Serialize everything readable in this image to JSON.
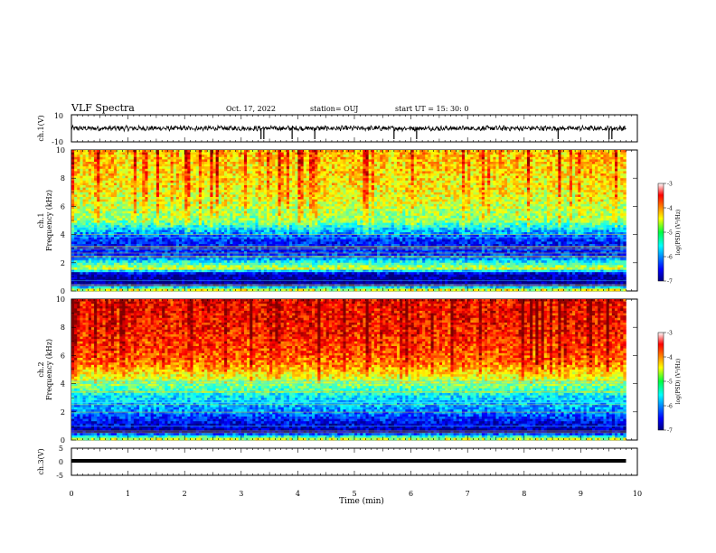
{
  "header": {
    "title": "VLF Spectra",
    "date": "Oct. 17, 2022",
    "station": "station= OUJ",
    "start": "start  UT =   15: 30: 0"
  },
  "chart_data": [
    {
      "type": "line",
      "name_label": "ch.1(V)",
      "xlim": [
        0,
        10
      ],
      "ylim": [
        -10,
        10
      ],
      "yticks": [
        "10",
        "-10"
      ],
      "baseline": 0,
      "x_end": 9.8,
      "spike_times": [
        3.35,
        3.4,
        3.9,
        4.3,
        5.7,
        6.1,
        8.6,
        9.5,
        9.55
      ]
    },
    {
      "type": "heatmap",
      "ylabel": "ch.1\nFrequency (kHz)",
      "xlim": [
        0,
        10
      ],
      "ylim": [
        0,
        10
      ],
      "yticks": [
        "0",
        "2",
        "4",
        "6",
        "8",
        "10"
      ],
      "x_end": 9.8,
      "band_profile": [
        {
          "f": 0.0,
          "v": -4.2
        },
        {
          "f": 0.5,
          "v": -7.0
        },
        {
          "f": 1.2,
          "v": -6.8
        },
        {
          "f": 1.6,
          "v": -4.6
        },
        {
          "f": 2.5,
          "v": -6.3
        },
        {
          "f": 3.5,
          "v": -6.4
        },
        {
          "f": 4.3,
          "v": -5.8
        },
        {
          "f": 5.0,
          "v": -5.0
        },
        {
          "f": 7.0,
          "v": -4.6
        },
        {
          "f": 10.0,
          "v": -4.4
        }
      ],
      "colorbar": {
        "min": -7,
        "max": -3,
        "ticks": [
          "-3",
          "-4",
          "-5",
          "-6",
          "-7"
        ],
        "label": "log(PSD) (V²/Hz)"
      }
    },
    {
      "type": "heatmap",
      "ylabel": "ch.2\nFrequency (kHz)",
      "xlim": [
        0,
        10
      ],
      "ylim": [
        0,
        10
      ],
      "yticks": [
        "0",
        "2",
        "4",
        "6",
        "8",
        "10"
      ],
      "x_end": 9.8,
      "band_profile": [
        {
          "f": 0.0,
          "v": -4.4
        },
        {
          "f": 0.6,
          "v": -6.9
        },
        {
          "f": 1.3,
          "v": -6.5
        },
        {
          "f": 2.0,
          "v": -6.0
        },
        {
          "f": 3.0,
          "v": -5.6
        },
        {
          "f": 4.2,
          "v": -4.8
        },
        {
          "f": 5.5,
          "v": -4.0
        },
        {
          "f": 7.5,
          "v": -3.7
        },
        {
          "f": 10.0,
          "v": -3.6
        }
      ],
      "colorbar": {
        "min": -7,
        "max": -3,
        "ticks": [
          "-3",
          "-4",
          "-5",
          "-6",
          "-7"
        ],
        "label": "log(PSD) (V²/Hz)"
      }
    },
    {
      "type": "line",
      "name_label": "ch.3(V)",
      "xlim": [
        0,
        10
      ],
      "ylim": [
        -5,
        5
      ],
      "yticks": [
        "5",
        "0",
        "-5"
      ],
      "baseline": 0,
      "x_end": 9.8
    }
  ],
  "xaxis": {
    "label": "Time (min)",
    "ticks": [
      "0",
      "1",
      "2",
      "3",
      "4",
      "5",
      "6",
      "7",
      "8",
      "9",
      "10"
    ]
  }
}
